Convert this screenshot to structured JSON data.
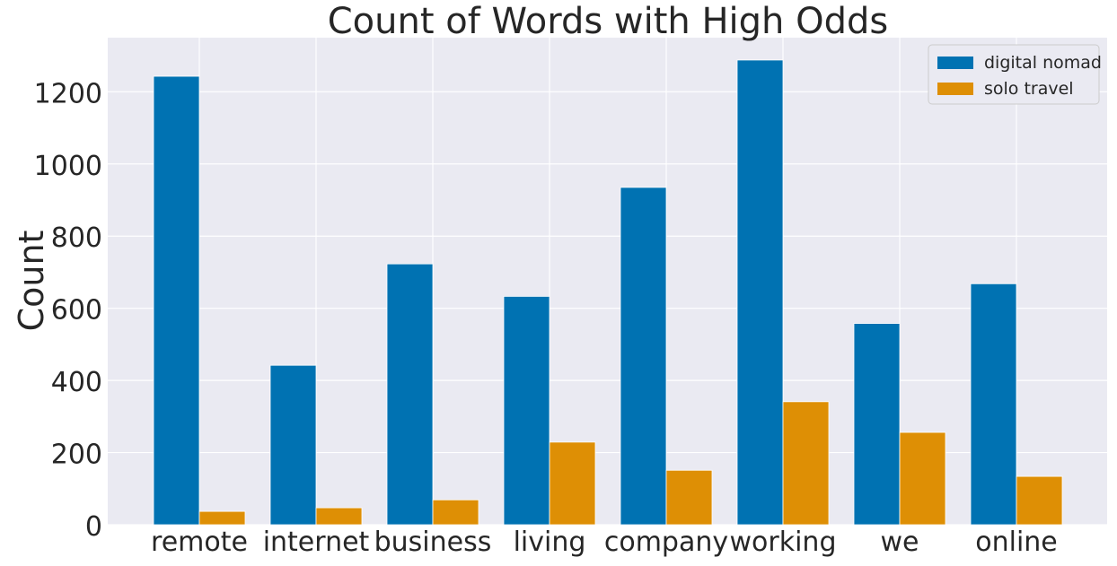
{
  "chart_data": {
    "type": "bar",
    "title": "Count of Words with High Odds",
    "xlabel": "",
    "ylabel": "Count",
    "categories": [
      "remote",
      "internet",
      "business",
      "living",
      "company",
      "working",
      "we",
      "online"
    ],
    "series": [
      {
        "name": "digital nomad",
        "color": "#0072b2",
        "values": [
          1243,
          442,
          723,
          633,
          935,
          1288,
          558,
          668
        ]
      },
      {
        "name": "solo travel",
        "color": "#de8f05",
        "values": [
          37,
          47,
          69,
          229,
          151,
          341,
          256,
          134
        ]
      }
    ],
    "ylim": [
      0,
      1350
    ],
    "yticks": [
      0,
      200,
      400,
      600,
      800,
      1000,
      1200
    ],
    "grid": true,
    "legend_position": "top-right",
    "background_color": "#eaeaf2",
    "grid_color": "#ffffff"
  }
}
